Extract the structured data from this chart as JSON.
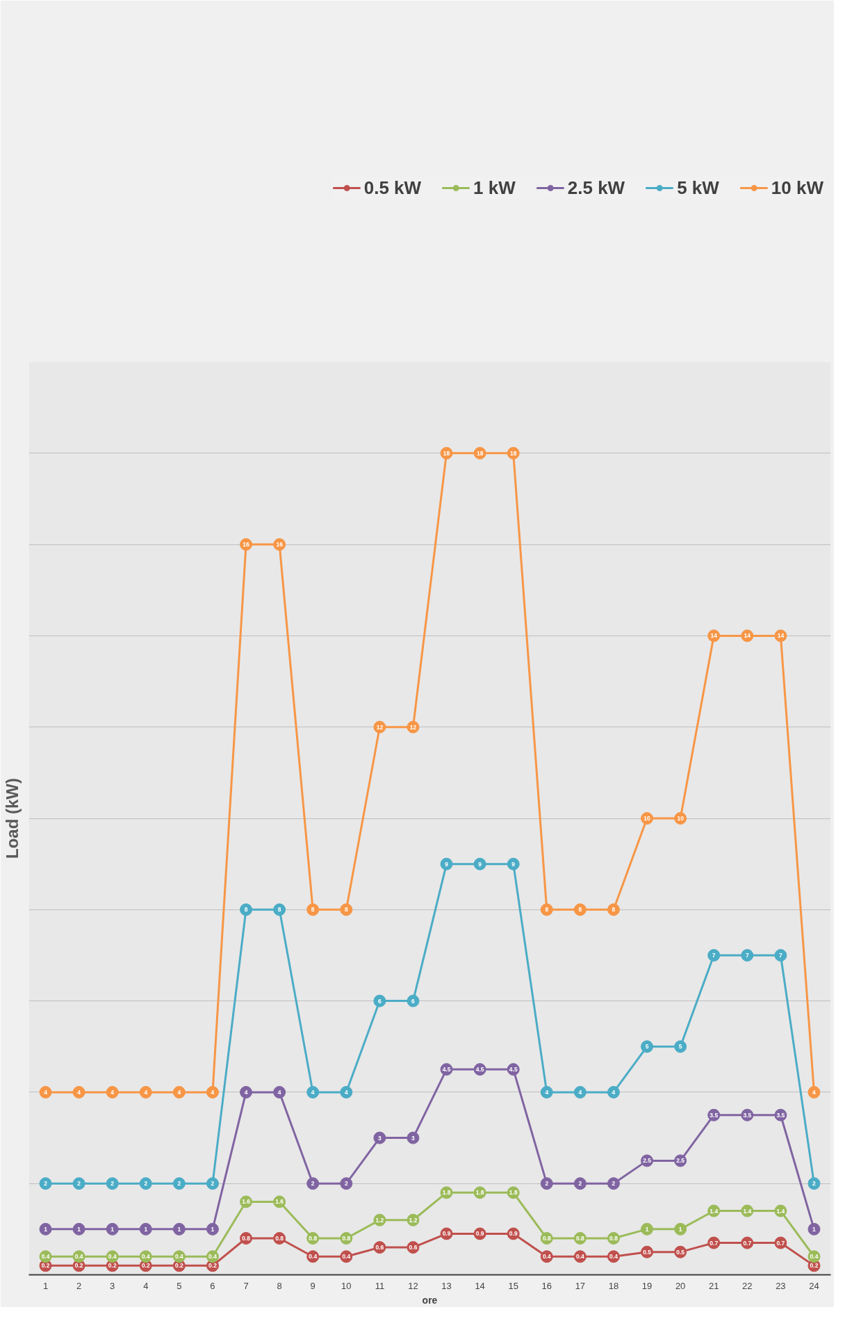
{
  "chart_data": {
    "type": "line",
    "xlabel": "ore",
    "ylabel": "Load (kW)",
    "x": [
      1,
      2,
      3,
      4,
      5,
      6,
      7,
      8,
      9,
      10,
      11,
      12,
      13,
      14,
      15,
      16,
      17,
      18,
      19,
      20,
      21,
      22,
      23,
      24
    ],
    "xlim": [
      0.5,
      24.5
    ],
    "xticks": [
      1,
      2,
      3,
      4,
      5,
      6,
      7,
      8,
      9,
      10,
      11,
      12,
      13,
      14,
      15,
      16,
      17,
      18,
      19,
      20,
      21,
      22,
      23,
      24
    ],
    "ylim": [
      0,
      20
    ],
    "yticks": [
      {
        "value": 0,
        "label": null
      },
      {
        "value": 2,
        "label": null
      },
      {
        "value": 4,
        "label": null
      },
      {
        "value": 6,
        "label": null
      },
      {
        "value": 8,
        "label": null
      },
      {
        "value": 10,
        "label": null
      },
      {
        "value": 12,
        "label": null
      },
      {
        "value": 14,
        "label": null
      },
      {
        "value": 16,
        "label": null
      },
      {
        "value": 18,
        "label": null
      },
      {
        "value": 20,
        "label": null
      }
    ],
    "tick_labels": "x",
    "grid": "y",
    "legend": "top",
    "marker": "circle",
    "line_style": "solid",
    "data_labels": true,
    "series": [
      {
        "name": "0.5 kW",
        "color": "#c0504d",
        "values": [
          0.2,
          0.2,
          0.2,
          0.2,
          0.2,
          0.2,
          0.8,
          0.8,
          0.4,
          0.4,
          0.6,
          0.6,
          0.9,
          0.9,
          0.9,
          0.4,
          0.4,
          0.4,
          0.5,
          0.5,
          0.7,
          0.7,
          0.7,
          0.2
        ]
      },
      {
        "name": "1 kW",
        "color": "#9bbb59",
        "values": [
          0.4,
          0.4,
          0.4,
          0.4,
          0.4,
          0.4,
          1.6,
          1.6,
          0.8,
          0.8,
          1.2,
          1.2,
          1.8,
          1.8,
          1.8,
          0.8,
          0.8,
          0.8,
          1,
          1,
          1.4,
          1.4,
          1.4,
          0.4
        ]
      },
      {
        "name": "2.5 kW",
        "color": "#8064a2",
        "values": [
          1,
          1,
          1,
          1,
          1,
          1,
          4,
          4,
          2,
          2,
          3,
          3,
          4.5,
          4.5,
          4.5,
          2,
          2,
          2,
          2.5,
          2.5,
          3.5,
          3.5,
          3.5,
          1
        ]
      },
      {
        "name": "5 kW",
        "color": "#4bacc6",
        "values": [
          2,
          2,
          2,
          2,
          2,
          2,
          8,
          8,
          4,
          4,
          6,
          6,
          9,
          9,
          9,
          4,
          4,
          4,
          5,
          5,
          7,
          7,
          7,
          2
        ]
      },
      {
        "name": "10 kW",
        "color": "#f79646",
        "values": [
          4,
          4,
          4,
          4,
          4,
          4,
          16,
          16,
          8,
          8,
          12,
          12,
          18,
          18,
          18,
          8,
          8,
          8,
          10,
          10,
          14,
          14,
          14,
          4
        ]
      }
    ]
  }
}
